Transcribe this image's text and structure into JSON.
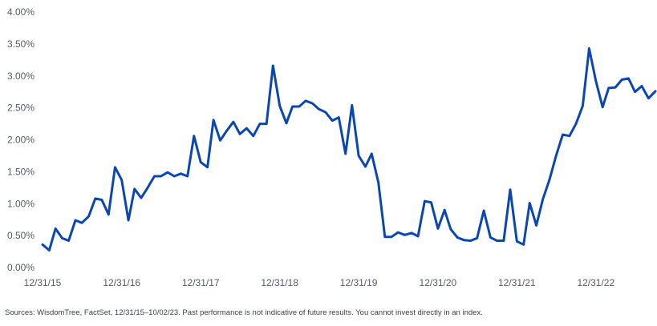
{
  "chart_data": {
    "type": "line",
    "title": "",
    "xlabel": "",
    "ylabel": "",
    "ylim": [
      0,
      4
    ],
    "yticks": [
      "0.00%",
      "0.50%",
      "1.00%",
      "1.50%",
      "2.00%",
      "2.50%",
      "3.00%",
      "3.50%",
      "4.00%"
    ],
    "xticks": [
      "12/31/15",
      "12/31/16",
      "12/31/17",
      "12/31/18",
      "12/31/19",
      "12/31/20",
      "12/31/21",
      "12/31/22"
    ],
    "grid": false,
    "legend": "none",
    "line_color": "#0b47b3",
    "x_range": [
      "2015-12-31",
      "2023-10-02"
    ],
    "series": [
      {
        "points": [
          [
            "2015-12-31",
            0.36
          ],
          [
            "2016-01-31",
            0.27
          ],
          [
            "2016-02-29",
            0.61
          ],
          [
            "2016-03-31",
            0.46
          ],
          [
            "2016-04-30",
            0.42
          ],
          [
            "2016-05-31",
            0.74
          ],
          [
            "2016-06-30",
            0.7
          ],
          [
            "2016-07-31",
            0.8
          ],
          [
            "2016-08-31",
            1.08
          ],
          [
            "2016-09-30",
            1.06
          ],
          [
            "2016-10-31",
            0.83
          ],
          [
            "2016-11-30",
            1.57
          ],
          [
            "2016-12-31",
            1.37
          ],
          [
            "2017-01-31",
            0.74
          ],
          [
            "2017-02-28",
            1.23
          ],
          [
            "2017-03-31",
            1.09
          ],
          [
            "2017-04-30",
            1.25
          ],
          [
            "2017-05-31",
            1.43
          ],
          [
            "2017-06-30",
            1.43
          ],
          [
            "2017-07-31",
            1.49
          ],
          [
            "2017-08-31",
            1.43
          ],
          [
            "2017-09-30",
            1.47
          ],
          [
            "2017-10-31",
            1.43
          ],
          [
            "2017-11-30",
            2.06
          ],
          [
            "2017-12-31",
            1.65
          ],
          [
            "2018-01-31",
            1.57
          ],
          [
            "2018-02-28",
            2.31
          ],
          [
            "2018-03-31",
            1.99
          ],
          [
            "2018-04-30",
            2.14
          ],
          [
            "2018-05-31",
            2.28
          ],
          [
            "2018-06-30",
            2.09
          ],
          [
            "2018-07-31",
            2.18
          ],
          [
            "2018-08-31",
            2.06
          ],
          [
            "2018-09-30",
            2.25
          ],
          [
            "2018-10-31",
            2.25
          ],
          [
            "2018-11-30",
            3.16
          ],
          [
            "2018-12-31",
            2.53
          ],
          [
            "2019-01-31",
            2.26
          ],
          [
            "2019-02-28",
            2.52
          ],
          [
            "2019-03-31",
            2.52
          ],
          [
            "2019-04-30",
            2.61
          ],
          [
            "2019-05-31",
            2.57
          ],
          [
            "2019-06-30",
            2.48
          ],
          [
            "2019-07-31",
            2.43
          ],
          [
            "2019-08-31",
            2.3
          ],
          [
            "2019-09-30",
            2.35
          ],
          [
            "2019-10-31",
            1.78
          ],
          [
            "2019-11-30",
            2.54
          ],
          [
            "2019-12-31",
            1.75
          ],
          [
            "2020-01-31",
            1.58
          ],
          [
            "2020-02-29",
            1.78
          ],
          [
            "2020-03-31",
            1.33
          ],
          [
            "2020-04-30",
            0.48
          ],
          [
            "2020-05-31",
            0.48
          ],
          [
            "2020-06-30",
            0.55
          ],
          [
            "2020-07-31",
            0.51
          ],
          [
            "2020-08-31",
            0.54
          ],
          [
            "2020-09-30",
            0.49
          ],
          [
            "2020-10-31",
            1.04
          ],
          [
            "2020-11-30",
            1.02
          ],
          [
            "2020-12-31",
            0.61
          ],
          [
            "2021-01-31",
            0.9
          ],
          [
            "2021-02-28",
            0.6
          ],
          [
            "2021-03-31",
            0.47
          ],
          [
            "2021-04-30",
            0.43
          ],
          [
            "2021-05-31",
            0.42
          ],
          [
            "2021-06-30",
            0.46
          ],
          [
            "2021-07-31",
            0.89
          ],
          [
            "2021-08-31",
            0.47
          ],
          [
            "2021-09-30",
            0.42
          ],
          [
            "2021-10-31",
            0.42
          ],
          [
            "2021-11-30",
            1.22
          ],
          [
            "2021-12-31",
            0.41
          ],
          [
            "2022-01-31",
            0.36
          ],
          [
            "2022-02-28",
            1.01
          ],
          [
            "2022-03-31",
            0.66
          ],
          [
            "2022-04-30",
            1.07
          ],
          [
            "2022-05-31",
            1.38
          ],
          [
            "2022-06-30",
            1.75
          ],
          [
            "2022-07-31",
            2.08
          ],
          [
            "2022-08-31",
            2.06
          ],
          [
            "2022-09-30",
            2.25
          ],
          [
            "2022-10-31",
            2.53
          ],
          [
            "2022-11-30",
            3.43
          ],
          [
            "2022-12-31",
            2.92
          ],
          [
            "2023-01-31",
            2.51
          ],
          [
            "2023-02-28",
            2.81
          ],
          [
            "2023-03-31",
            2.82
          ],
          [
            "2023-04-30",
            2.94
          ],
          [
            "2023-05-31",
            2.96
          ],
          [
            "2023-06-30",
            2.75
          ],
          [
            "2023-07-31",
            2.84
          ],
          [
            "2023-08-31",
            2.65
          ],
          [
            "2023-10-02",
            2.76
          ]
        ]
      }
    ]
  },
  "source_note": "Sources: WisdomTree, FactSet, 12/31/15–10/02/23. Past performance is not indicative of future results. You cannot invest directly in an index."
}
